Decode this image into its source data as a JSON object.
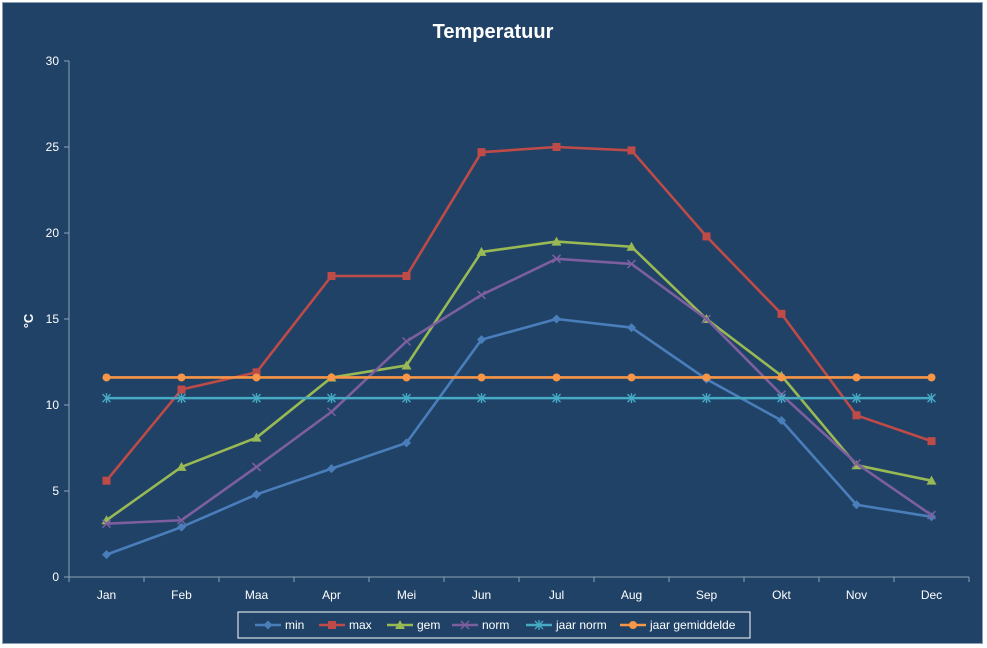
{
  "chart_data": {
    "type": "line",
    "title": "Temperatuur",
    "xlabel": "",
    "ylabel": "°C",
    "ylim": [
      0,
      30
    ],
    "yticks": [
      0,
      5,
      10,
      15,
      20,
      25,
      30
    ],
    "grid": false,
    "legend_position": "bottom",
    "categories": [
      "Jan",
      "Feb",
      "Maa",
      "Apr",
      "Mei",
      "Jun",
      "Jul",
      "Aug",
      "Sep",
      "Okt",
      "Nov",
      "Dec"
    ],
    "series": [
      {
        "name": "min",
        "color": "#4a7ebb",
        "marker": "diamond",
        "values": [
          1.3,
          2.9,
          4.8,
          6.3,
          7.8,
          13.8,
          15.0,
          14.5,
          11.5,
          9.1,
          4.2,
          3.5
        ]
      },
      {
        "name": "max",
        "color": "#be4b48",
        "marker": "square",
        "values": [
          5.6,
          10.9,
          11.9,
          17.5,
          17.5,
          24.7,
          25.0,
          24.8,
          19.8,
          15.3,
          9.4,
          7.9
        ]
      },
      {
        "name": "gem",
        "color": "#98b954",
        "marker": "triangle",
        "values": [
          3.3,
          6.4,
          8.1,
          11.6,
          12.3,
          18.9,
          19.5,
          19.2,
          15.0,
          11.7,
          6.5,
          5.6
        ]
      },
      {
        "name": "norm",
        "color": "#7d5fa0",
        "marker": "x",
        "values": [
          3.1,
          3.3,
          6.4,
          9.6,
          13.7,
          16.4,
          18.5,
          18.2,
          15.0,
          10.6,
          6.6,
          3.6
        ]
      },
      {
        "name": "jaar norm",
        "color": "#46aac5",
        "marker": "star",
        "values": [
          10.4,
          10.4,
          10.4,
          10.4,
          10.4,
          10.4,
          10.4,
          10.4,
          10.4,
          10.4,
          10.4,
          10.4
        ]
      },
      {
        "name": "jaar gemiddelde",
        "color": "#f79646",
        "marker": "circle",
        "values": [
          11.6,
          11.6,
          11.6,
          11.6,
          11.6,
          11.6,
          11.6,
          11.6,
          11.6,
          11.6,
          11.6,
          11.6
        ]
      }
    ]
  }
}
